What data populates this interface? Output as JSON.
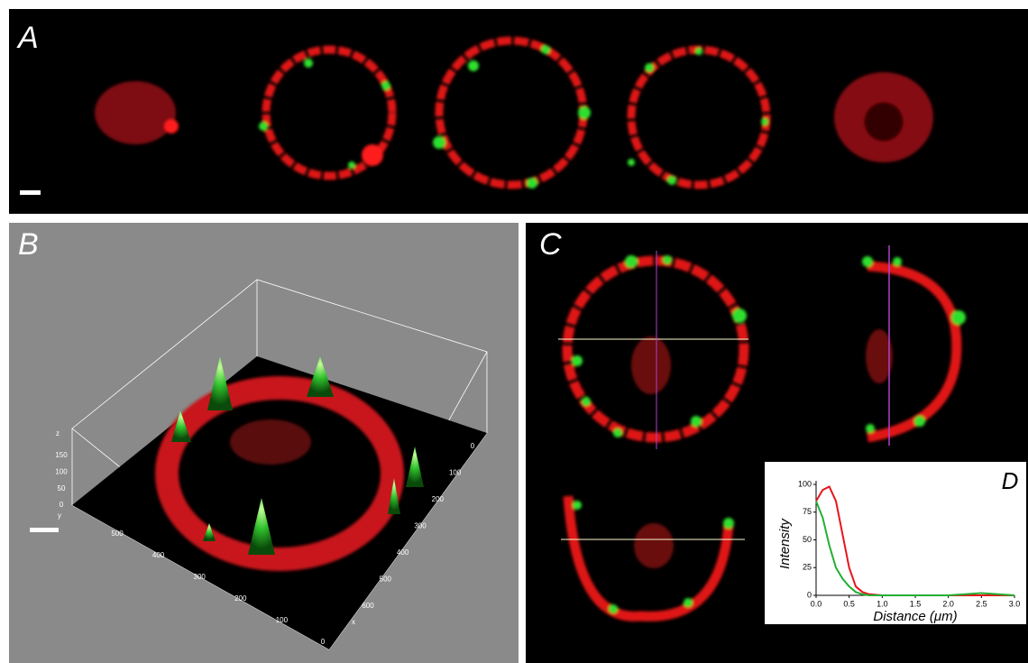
{
  "panels": {
    "a": {
      "label": "A"
    },
    "b": {
      "label": "B",
      "z_label": "z",
      "z_ticks": [
        150,
        100,
        50,
        0
      ],
      "y_label": "y",
      "y_ticks": [
        500,
        400,
        300,
        200,
        100,
        0
      ],
      "x_label": "x",
      "x_ticks": [
        0,
        100,
        200,
        300,
        400,
        500,
        600
      ]
    },
    "c": {
      "label": "C"
    }
  },
  "chart_data": {
    "type": "line",
    "title": "D",
    "xlabel": "Distance (μm)",
    "ylabel": "Intensity",
    "x": [
      0,
      0.1,
      0.2,
      0.3,
      0.4,
      0.5,
      0.6,
      0.7,
      0.8,
      1.0,
      1.5,
      2.0,
      2.5,
      3.0
    ],
    "series": [
      {
        "color": "#e8141c",
        "values": [
          85,
          95,
          98,
          85,
          55,
          25,
          8,
          3,
          1,
          0,
          0,
          0,
          0,
          0
        ]
      },
      {
        "color": "#22b033",
        "values": [
          85,
          70,
          45,
          25,
          15,
          8,
          3,
          1,
          0,
          0,
          0,
          0,
          2,
          0
        ]
      }
    ],
    "xlim": [
      0,
      3.0
    ],
    "ylim": [
      0,
      100
    ],
    "xticks": [
      {
        "value": 0,
        "label": "0.0"
      },
      {
        "value": 0.5,
        "label": "0.5"
      },
      {
        "value": 1.0,
        "label": "1.0"
      },
      {
        "value": 1.5,
        "label": "1.5"
      },
      {
        "value": 2.0,
        "label": "2.0"
      },
      {
        "value": 2.5,
        "label": "2.5"
      },
      {
        "value": 3.0,
        "label": "3.0"
      }
    ],
    "yticks": [
      0,
      25,
      50,
      75,
      100
    ]
  }
}
